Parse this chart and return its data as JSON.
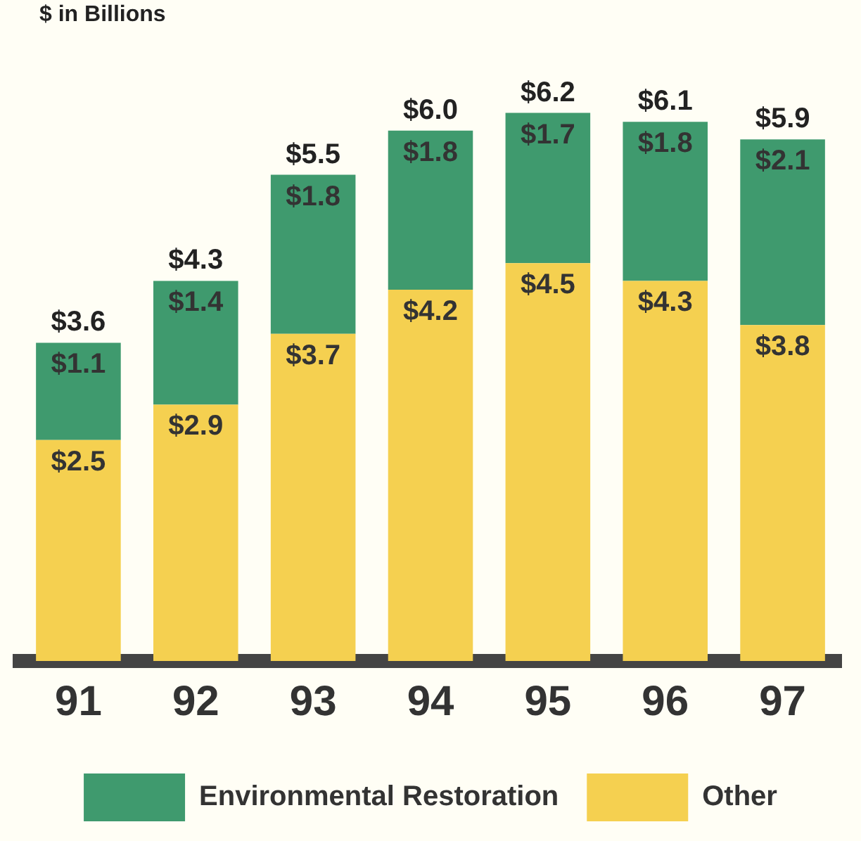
{
  "chart_data": {
    "type": "bar",
    "stacked": true,
    "title": "$ in Billions",
    "categories": [
      "91",
      "92",
      "93",
      "94",
      "95",
      "96",
      "97"
    ],
    "series": [
      {
        "name": "Other",
        "color": "#f5d050",
        "values": [
          2.5,
          2.9,
          3.7,
          4.2,
          4.5,
          4.3,
          3.8
        ],
        "value_labels": [
          "$2.5",
          "$2.9",
          "$3.7",
          "$4.2",
          "$4.5",
          "$4.3",
          "$3.8"
        ]
      },
      {
        "name": "Environmental Restoration",
        "color": "#3f9a6e",
        "values": [
          1.1,
          1.4,
          1.8,
          1.8,
          1.7,
          1.8,
          2.1
        ],
        "value_labels": [
          "$1.1",
          "$1.4",
          "$1.8",
          "$1.8",
          "$1.7",
          "$1.8",
          "$2.1"
        ]
      }
    ],
    "totals": [
      "$3.6",
      "$4.3",
      "$5.5",
      "$6.0",
      "$6.2",
      "$6.1",
      "$5.9"
    ],
    "legend": "bottom",
    "grid": false
  }
}
